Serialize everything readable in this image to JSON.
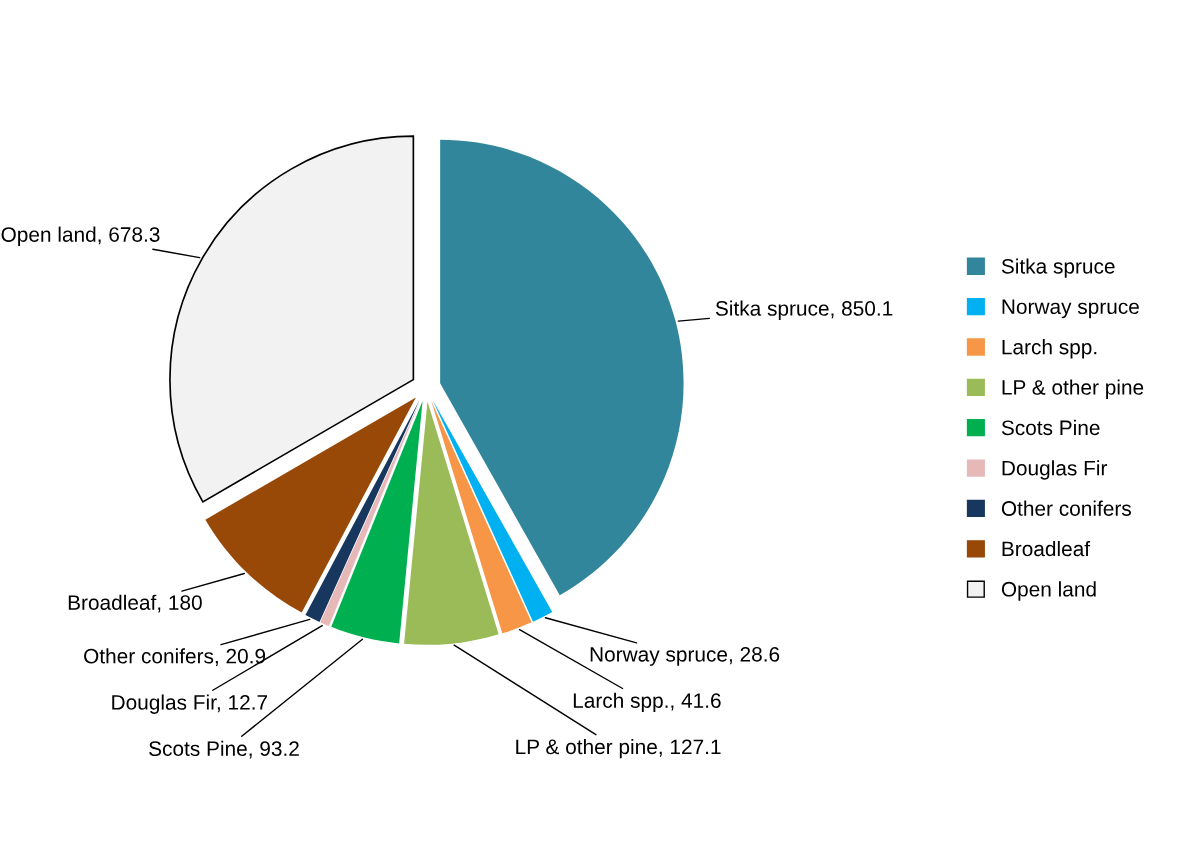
{
  "chart_data": {
    "type": "pie",
    "categories": [
      "Sitka spruce",
      "Norway spruce",
      "Larch spp.",
      "LP & other pine",
      "Scots Pine",
      "Douglas Fir",
      "Other conifers",
      "Broadleaf",
      "Open land"
    ],
    "values": [
      850.1,
      28.6,
      41.6,
      127.1,
      93.2,
      12.7,
      20.9,
      180,
      678.3
    ],
    "colors": [
      "#31869b",
      "#00b0f0",
      "#f79646",
      "#9bbb59",
      "#00b050",
      "#e6b9b8",
      "#17375e",
      "#984807",
      "#f2f2f2"
    ],
    "value_labels": [
      "Sitka spruce, 850.1",
      "Norway spruce, 28.6",
      "Larch spp., 41.6",
      "LP & other pine, 127.1",
      "Scots Pine, 93.2",
      "Douglas Fir, 12.7",
      "Other conifers, 20.9",
      "Broadleaf, 180",
      "Open land, 678.3"
    ],
    "legend": "right"
  }
}
